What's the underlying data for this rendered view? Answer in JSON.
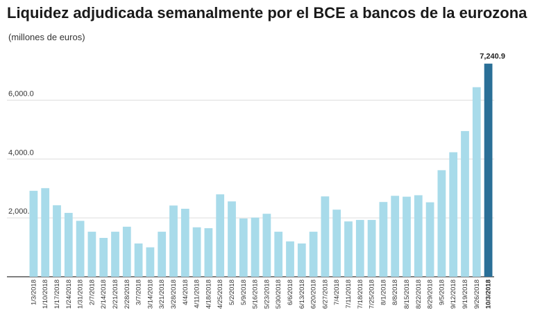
{
  "chart_data": {
    "type": "bar",
    "title": "Liquidez adjudicada semanalmente por el BCE a bancos de la eurozona",
    "subtitle": "(millones de euros)",
    "categories": [
      "1/3/2018",
      "1/10/2018",
      "1/17/2018",
      "1/24/2018",
      "1/31/2018",
      "2/7/2018",
      "2/14/2018",
      "2/21/2018",
      "2/28/2018",
      "3/7/2018",
      "3/14/2018",
      "3/21/2018",
      "3/28/2018",
      "4/4/2018",
      "4/11/2018",
      "4/18/2018",
      "4/25/2018",
      "5/2/2018",
      "5/9/2018",
      "5/16/2018",
      "5/23/2018",
      "5/30/2018",
      "6/6/2018",
      "6/13/2018",
      "6/20/2018",
      "6/27/2018",
      "7/4/2018",
      "7/11/2018",
      "7/18/2018",
      "7/25/2018",
      "8/1/2018",
      "8/8/2018",
      "8/15/2018",
      "8/22/2018",
      "8/29/2018",
      "9/5/2018",
      "9/12/2018",
      "9/19/2018",
      "9/26/2018",
      "10/3/2018"
    ],
    "values": [
      2920,
      3010,
      2430,
      2170,
      1900,
      1530,
      1320,
      1530,
      1700,
      1130,
      1000,
      1530,
      2420,
      2310,
      1680,
      1650,
      2800,
      2560,
      1980,
      2010,
      2140,
      1530,
      1200,
      1130,
      1530,
      2730,
      2280,
      1880,
      1930,
      1930,
      2540,
      2750,
      2720,
      2770,
      2530,
      3620,
      4230,
      4950,
      6440,
      7240.9
    ],
    "highlight_index": 39,
    "highlight_label": "7,240.9",
    "ylim": [
      0,
      7800
    ],
    "yticks": [
      2000,
      4000,
      6000
    ],
    "ytick_labels": [
      "2,000.0",
      "4,000.0",
      "6,000.0"
    ],
    "grid": true,
    "colors": {
      "bar": "#a8dbea",
      "highlight": "#2a6f97",
      "grid": "#dddddd",
      "axis": "#333333"
    }
  }
}
